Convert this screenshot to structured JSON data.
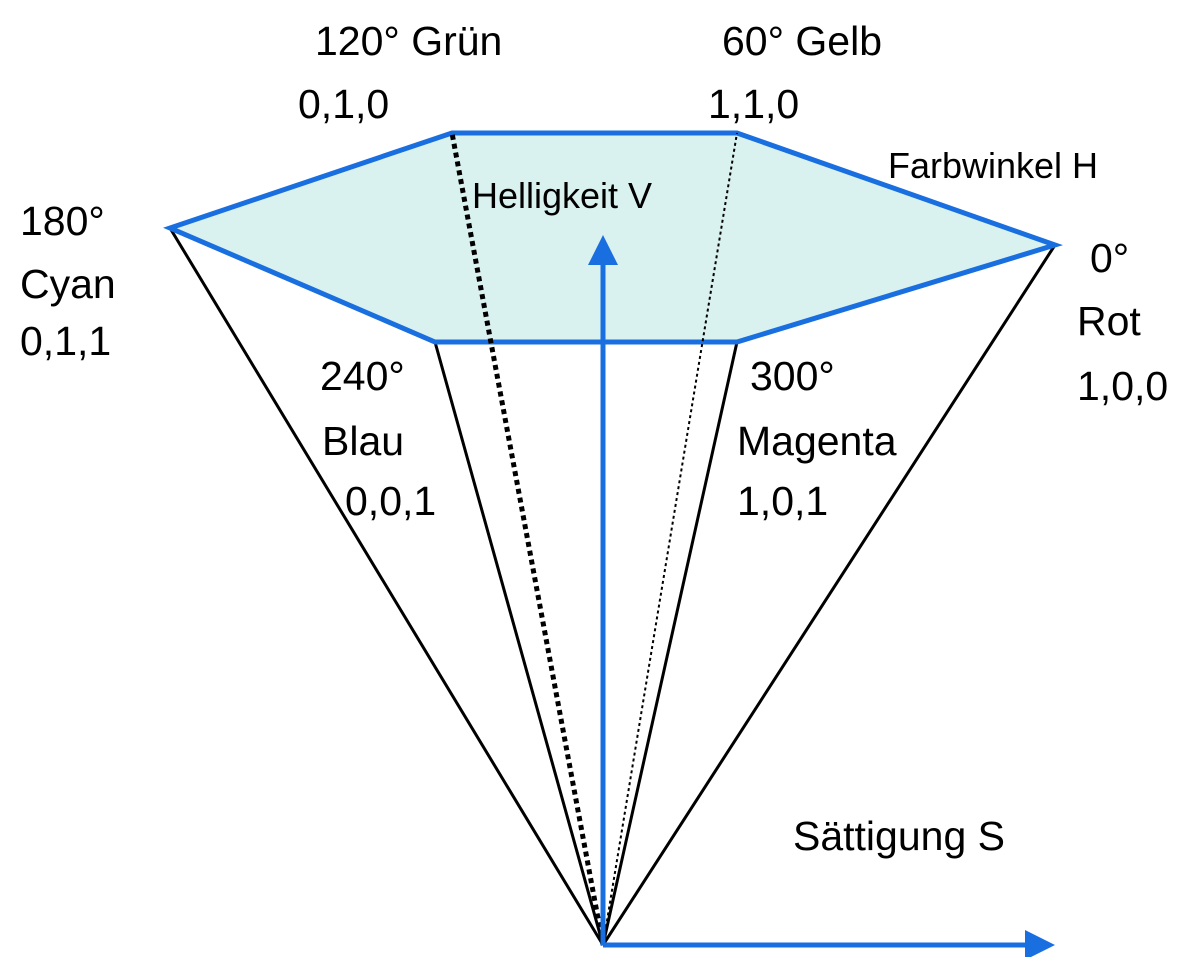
{
  "nodes": [
    {
      "lines": [
        "120° Grün",
        "0,1,0"
      ]
    },
    {
      "lines": [
        "60° Gelb",
        "1,1,0"
      ]
    },
    {
      "lines": [
        "180°",
        "Cyan",
        "0,1,1"
      ]
    },
    {
      "lines": [
        "0°",
        "Rot",
        "1,0,0"
      ]
    },
    {
      "lines": [
        "240°",
        "Blau",
        "0,0,1"
      ]
    },
    {
      "lines": [
        "300°",
        "Magenta",
        "1,0,1"
      ]
    }
  ],
  "axes": {
    "hue": "Farbwinkel H",
    "value": "Helligkeit V",
    "saturation": "Sättigung S"
  }
}
